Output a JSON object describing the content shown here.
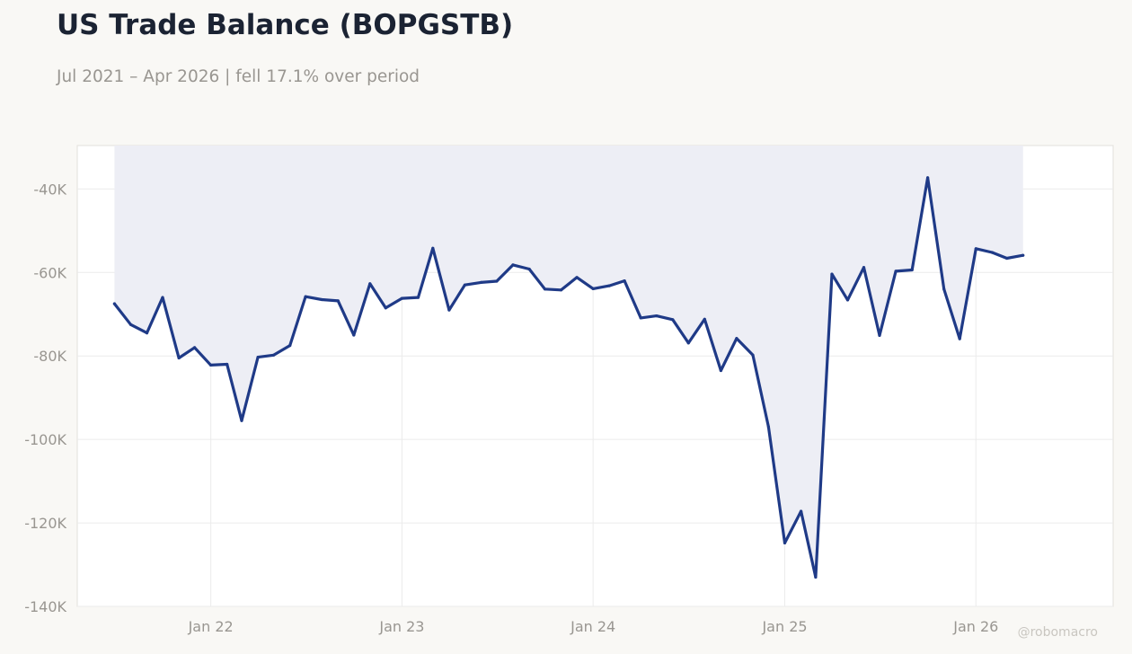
{
  "header": {
    "title": "US Trade Balance (BOPGSTB)",
    "subtitle": "Jul 2021 – Apr 2026 | fell 17.1% over period"
  },
  "watermark": "@robomacro",
  "colors": {
    "background": "#f9f8f5",
    "plot_background": "#ffffff",
    "line": "#1f3a87",
    "fill": "#edeef5",
    "grid": "#ebebeb",
    "text_muted": "#999691",
    "title": "#1b2333"
  },
  "chart_data": {
    "type": "area",
    "title": "US Trade Balance (BOPGSTB)",
    "subtitle": "Jul 2021 – Apr 2026 | fell 17.1% over period",
    "xlabel": "",
    "ylabel": "",
    "ylim": [
      -140000,
      -29600
    ],
    "xlim": [
      "2021-04-21",
      "2026-09-20"
    ],
    "fill_baseline": "top",
    "grid": true,
    "legend": "none",
    "x_ticks": [
      {
        "date": "2022-01-01",
        "label": "Jan 22"
      },
      {
        "date": "2023-01-01",
        "label": "Jan 23"
      },
      {
        "date": "2024-01-01",
        "label": "Jan 24"
      },
      {
        "date": "2025-01-01",
        "label": "Jan 25"
      },
      {
        "date": "2026-01-01",
        "label": "Jan 26"
      }
    ],
    "y_ticks": [
      {
        "value": -40000,
        "label": "-40K"
      },
      {
        "value": -60000,
        "label": "-60K"
      },
      {
        "value": -80000,
        "label": "-80K"
      },
      {
        "value": -100000,
        "label": "-100K"
      },
      {
        "value": -120000,
        "label": "-120K"
      },
      {
        "value": -140000,
        "label": "-140K"
      }
    ],
    "series": [
      {
        "x": [
          "2021-07-01",
          "2021-08-01",
          "2021-09-01",
          "2021-10-01",
          "2021-11-01",
          "2021-12-01",
          "2022-01-01",
          "2022-02-01",
          "2022-03-01",
          "2022-04-01",
          "2022-05-01",
          "2022-06-01",
          "2022-07-01",
          "2022-08-01",
          "2022-09-01",
          "2022-10-01",
          "2022-11-01",
          "2022-12-01",
          "2023-01-01",
          "2023-02-01",
          "2023-03-01",
          "2023-04-01",
          "2023-05-01",
          "2023-06-01",
          "2023-07-01",
          "2023-08-01",
          "2023-09-01",
          "2023-10-01",
          "2023-11-01",
          "2023-12-01",
          "2024-01-01",
          "2024-02-01",
          "2024-03-01",
          "2024-04-01",
          "2024-05-01",
          "2024-06-01",
          "2024-07-01",
          "2024-08-01",
          "2024-09-01",
          "2024-10-01",
          "2024-11-01",
          "2024-12-01",
          "2025-01-01",
          "2025-02-01",
          "2025-03-01",
          "2025-04-01",
          "2025-05-01",
          "2025-06-01",
          "2025-07-01",
          "2025-08-01",
          "2025-09-01",
          "2025-10-01",
          "2025-11-01",
          "2025-12-01",
          "2026-01-01",
          "2026-02-01",
          "2026-03-01",
          "2026-04-01"
        ],
        "values": [
          -67500,
          -72500,
          -74500,
          -66000,
          -80500,
          -78000,
          -82200,
          -82000,
          -95500,
          -80300,
          -79800,
          -77500,
          -65800,
          -66500,
          -66800,
          -75000,
          -62700,
          -68500,
          -66200,
          -66000,
          -54200,
          -69000,
          -63000,
          -62400,
          -62100,
          -58200,
          -59200,
          -64000,
          -64200,
          -61200,
          -63900,
          -63200,
          -62000,
          -70900,
          -70400,
          -71300,
          -76900,
          -71200,
          -83500,
          -75800,
          -79800,
          -97000,
          -124800,
          -117200,
          -133000,
          -60400,
          -66600,
          -58800,
          -75100,
          -59700,
          -59400,
          -37300,
          -64000,
          -75900,
          -54300,
          -55200,
          -56600,
          -55900
        ]
      }
    ]
  }
}
